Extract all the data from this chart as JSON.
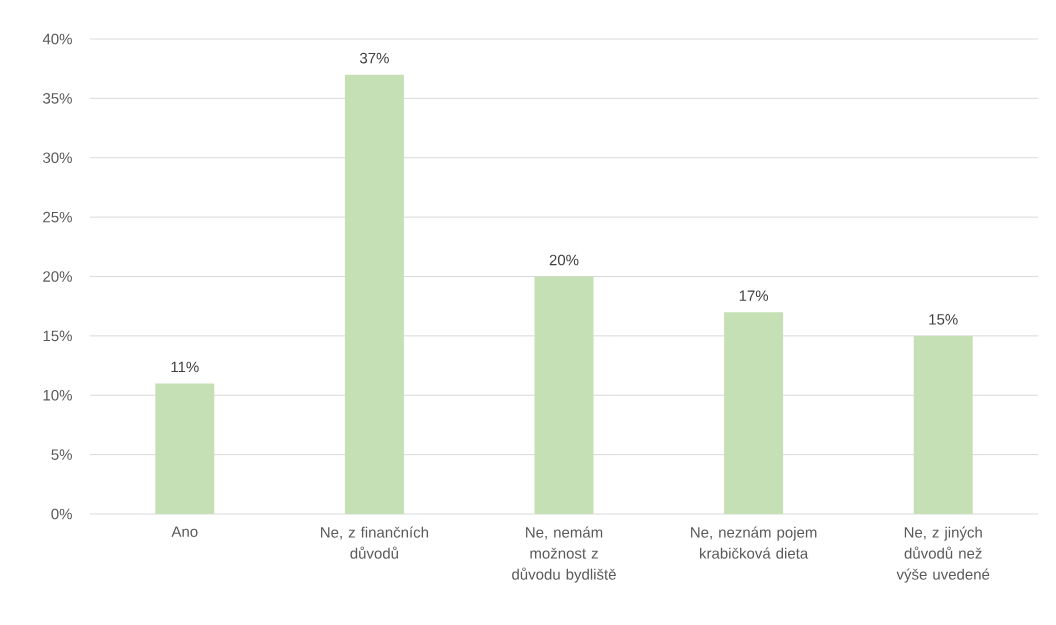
{
  "chart_data": {
    "type": "bar",
    "categories": [
      "Ano",
      "Ne, z finančních důvodů",
      "Ne, nemám možnost z důvodu bydliště",
      "Ne, neznám pojem krabičková dieta",
      "Ne, z jiných důvodů než výše uvedené"
    ],
    "values": [
      11,
      37,
      20,
      17,
      15
    ],
    "value_labels": [
      "11%",
      "37%",
      "20%",
      "17%",
      "15%"
    ],
    "color": "#c5e0b4",
    "ylim": [
      0,
      40
    ],
    "yticks": [
      {
        "value": 0,
        "label": "0%"
      },
      {
        "value": 5,
        "label": "5%"
      },
      {
        "value": 10,
        "label": "10%"
      },
      {
        "value": 15,
        "label": "15%"
      },
      {
        "value": 20,
        "label": "20%"
      },
      {
        "value": 25,
        "label": "25%"
      },
      {
        "value": 30,
        "label": "30%"
      },
      {
        "value": 35,
        "label": "35%"
      },
      {
        "value": 40,
        "label": "40%"
      }
    ],
    "grid": "y"
  }
}
